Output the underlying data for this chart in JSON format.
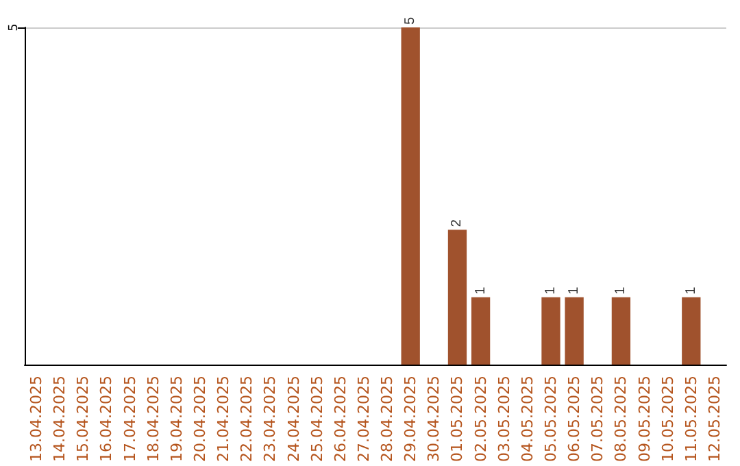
{
  "chart_data": {
    "type": "bar",
    "categories": [
      "13.04.2025",
      "14.04.2025",
      "15.04.2025",
      "16.04.2025",
      "17.04.2025",
      "18.04.2025",
      "19.04.2025",
      "20.04.2025",
      "21.04.2025",
      "22.04.2025",
      "23.04.2025",
      "24.04.2025",
      "25.04.2025",
      "26.04.2025",
      "27.04.2025",
      "28.04.2025",
      "29.04.2025",
      "30.04.2025",
      "01.05.2025",
      "02.05.2025",
      "03.05.2025",
      "04.05.2025",
      "05.05.2025",
      "06.05.2025",
      "07.05.2025",
      "08.05.2025",
      "09.05.2025",
      "10.05.2025",
      "11.05.2025",
      "12.05.2025"
    ],
    "values": [
      null,
      null,
      null,
      null,
      null,
      null,
      null,
      null,
      null,
      null,
      null,
      null,
      null,
      null,
      null,
      null,
      5,
      null,
      2,
      1,
      null,
      null,
      1,
      1,
      null,
      1,
      null,
      null,
      1,
      null
    ],
    "data_labels": true,
    "color": "#a0522d",
    "ylim": [
      0,
      5
    ],
    "yticks": [
      5
    ],
    "ref_lines": [
      {
        "axis": "y",
        "value": 5,
        "color": "#cccccc"
      }
    ]
  }
}
